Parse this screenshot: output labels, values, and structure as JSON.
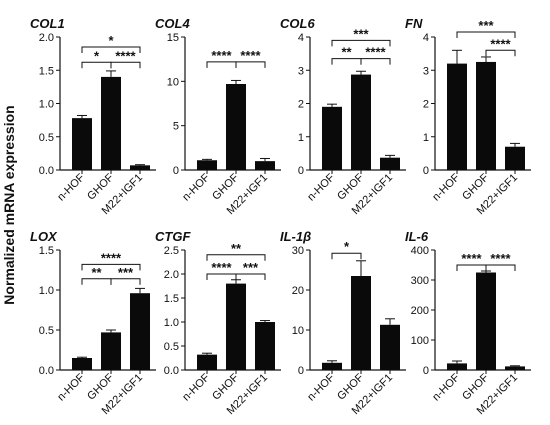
{
  "figure": {
    "ylabel": "Normalized mRNA expression"
  },
  "chart_data": [
    {
      "type": "bar",
      "title": "COL1",
      "categories": [
        "n-HOF",
        "GHOF",
        "M22+IGF1"
      ],
      "values": [
        0.78,
        1.4,
        0.07
      ],
      "errors": [
        0.04,
        0.09,
        0.01
      ],
      "ylim": [
        0,
        2.0
      ],
      "yticks": [
        "0.0",
        "0.5",
        "1.0",
        "1.5",
        "2.0"
      ],
      "yticks_v": [
        0,
        0.5,
        1.0,
        1.5,
        2.0
      ],
      "significance": [
        {
          "from": 0,
          "to": 1,
          "label": "*",
          "y": 1.62
        },
        {
          "from": 1,
          "to": 2,
          "label": "****",
          "y": 1.62
        },
        {
          "from": 0,
          "to": 2,
          "label": "*",
          "y": 1.85
        }
      ]
    },
    {
      "type": "bar",
      "title": "COL4",
      "categories": [
        "n-HOF",
        "GHOF",
        "M22+IGF1"
      ],
      "values": [
        1.1,
        9.7,
        1.0
      ],
      "errors": [
        0.1,
        0.4,
        0.3
      ],
      "ylim": [
        0,
        15
      ],
      "yticks": [
        "0",
        "5",
        "10",
        "15"
      ],
      "yticks_v": [
        0,
        5,
        10,
        15
      ],
      "significance": [
        {
          "from": 0,
          "to": 1,
          "label": "****",
          "y": 12.2
        },
        {
          "from": 1,
          "to": 2,
          "label": "****",
          "y": 12.2
        }
      ]
    },
    {
      "type": "bar",
      "title": "COL6",
      "categories": [
        "n-HOF",
        "GHOF",
        "M22+IGF1"
      ],
      "values": [
        1.9,
        2.87,
        0.37
      ],
      "errors": [
        0.08,
        0.1,
        0.07
      ],
      "ylim": [
        0,
        4
      ],
      "yticks": [
        "0",
        "1",
        "2",
        "3",
        "4"
      ],
      "yticks_v": [
        0,
        1,
        2,
        3,
        4
      ],
      "significance": [
        {
          "from": 0,
          "to": 1,
          "label": "**",
          "y": 3.35
        },
        {
          "from": 1,
          "to": 2,
          "label": "****",
          "y": 3.35
        },
        {
          "from": 0,
          "to": 2,
          "label": "***",
          "y": 3.9
        }
      ]
    },
    {
      "type": "bar",
      "title": "FN",
      "categories": [
        "n-HOF",
        "GHOF",
        "M22+IGF1"
      ],
      "values": [
        3.2,
        3.25,
        0.7
      ],
      "errors": [
        0.4,
        0.15,
        0.1
      ],
      "ylim": [
        0,
        4
      ],
      "yticks": [
        "0",
        "1",
        "2",
        "3",
        "4"
      ],
      "yticks_v": [
        0,
        1,
        2,
        3,
        4
      ],
      "significance": [
        {
          "from": 1,
          "to": 2,
          "label": "****",
          "y": 3.6
        },
        {
          "from": 0,
          "to": 2,
          "label": "***",
          "y": 4.15
        }
      ]
    },
    {
      "type": "bar",
      "title": "LOX",
      "categories": [
        "n-HOF",
        "GHOF",
        "M22+IGF1"
      ],
      "values": [
        0.15,
        0.47,
        0.96
      ],
      "errors": [
        0.01,
        0.03,
        0.06
      ],
      "ylim": [
        0,
        1.5
      ],
      "yticks": [
        "0.0",
        "0.5",
        "1.0",
        "1.5"
      ],
      "yticks_v": [
        0,
        0.5,
        1.0,
        1.5
      ],
      "significance": [
        {
          "from": 0,
          "to": 1,
          "label": "**",
          "y": 1.14
        },
        {
          "from": 1,
          "to": 2,
          "label": "***",
          "y": 1.14
        },
        {
          "from": 0,
          "to": 2,
          "label": "****",
          "y": 1.32
        }
      ]
    },
    {
      "type": "bar",
      "title": "CTGF",
      "categories": [
        "n-HOF",
        "GHOF",
        "M22+IGF1"
      ],
      "values": [
        0.32,
        1.8,
        1.0
      ],
      "errors": [
        0.03,
        0.08,
        0.03
      ],
      "ylim": [
        0,
        2.5
      ],
      "yticks": [
        "0.0",
        "0.5",
        "1.0",
        "1.5",
        "2.0",
        "2.5"
      ],
      "yticks_v": [
        0,
        0.5,
        1.0,
        1.5,
        2.0,
        2.5
      ],
      "significance": [
        {
          "from": 0,
          "to": 1,
          "label": "****",
          "y": 2.0
        },
        {
          "from": 1,
          "to": 2,
          "label": "***",
          "y": 2.0
        },
        {
          "from": 0,
          "to": 2,
          "label": "**",
          "y": 2.4
        }
      ]
    },
    {
      "type": "bar",
      "title": "IL-1β",
      "categories": [
        "n-HOF",
        "GHOF",
        "M22+IGF1"
      ],
      "values": [
        1.8,
        23.5,
        11.3
      ],
      "errors": [
        0.5,
        3.8,
        1.5
      ],
      "ylim": [
        0,
        30
      ],
      "yticks": [
        "0",
        "10",
        "20",
        "30"
      ],
      "yticks_v": [
        0,
        10,
        20,
        30
      ],
      "significance": [
        {
          "from": 0,
          "to": 1,
          "label": "*",
          "y": 29.2
        }
      ]
    },
    {
      "type": "bar",
      "title": "IL-6",
      "categories": [
        "n-HOF",
        "GHOF",
        "M22+IGF1"
      ],
      "values": [
        22,
        325,
        12
      ],
      "errors": [
        8,
        5,
        2
      ],
      "ylim": [
        0,
        400
      ],
      "yticks": [
        "0",
        "100",
        "200",
        "300",
        "400"
      ],
      "yticks_v": [
        0,
        100,
        200,
        300,
        400
      ],
      "significance": [
        {
          "from": 0,
          "to": 1,
          "label": "****",
          "y": 350
        },
        {
          "from": 1,
          "to": 2,
          "label": "****",
          "y": 350
        }
      ]
    }
  ]
}
